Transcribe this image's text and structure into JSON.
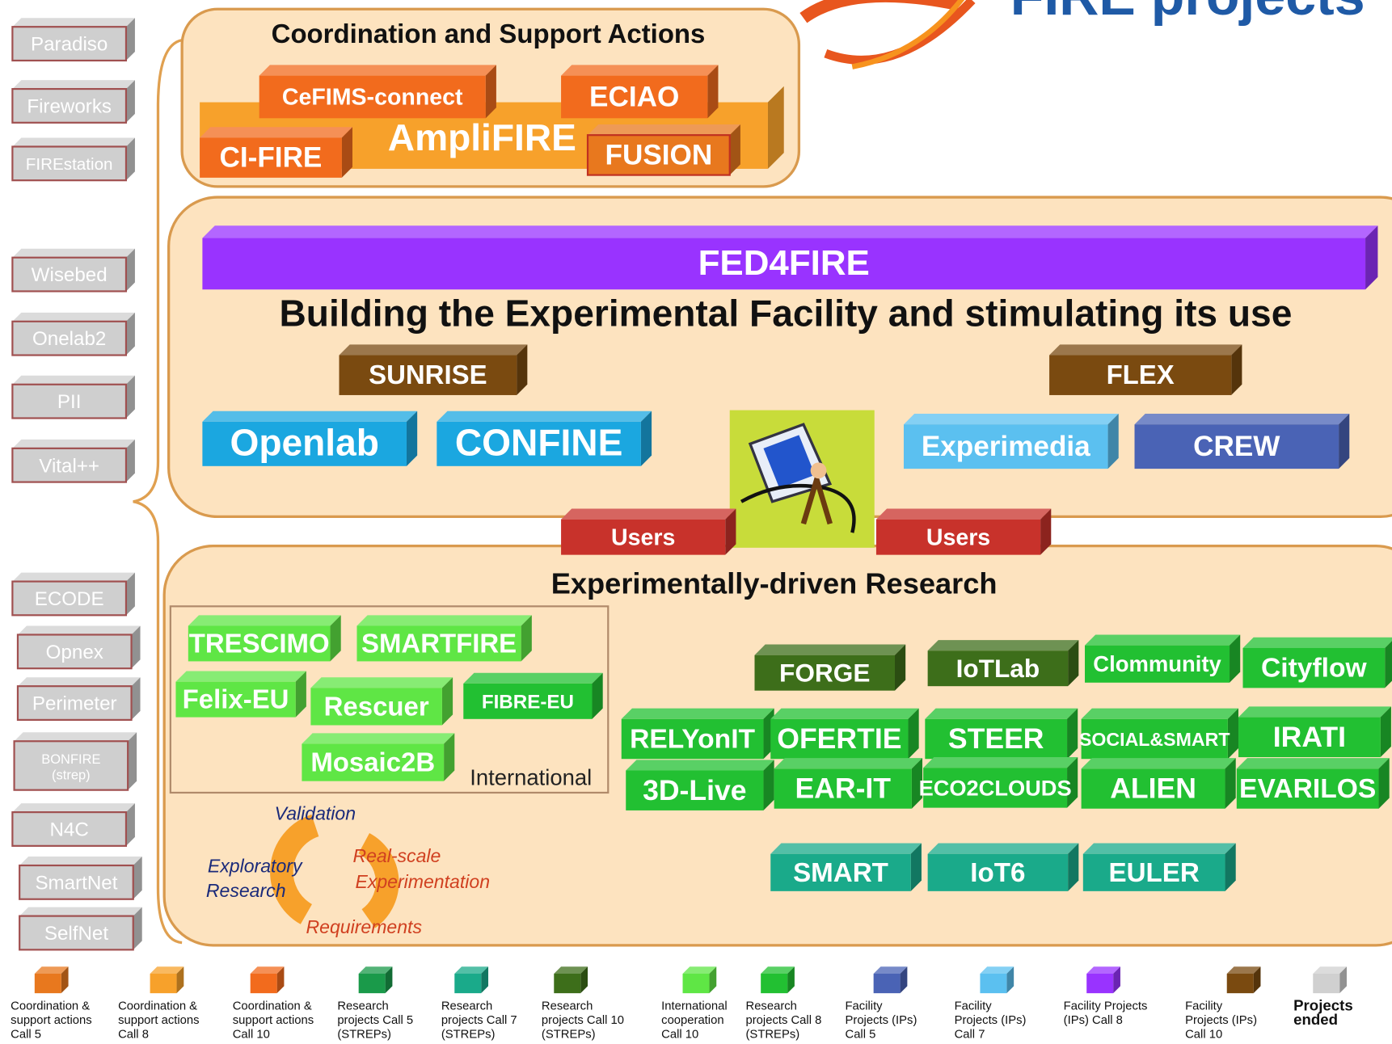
{
  "header": {
    "title": "FIRE projects"
  },
  "ended_projects": [
    "Paradiso",
    "Fireworks",
    "FIREstation",
    "Wisebed",
    "Onelab2",
    "PII",
    "Vital++",
    "ECODE",
    "Opnex",
    "Perimeter",
    "BONFIRE (strep)",
    "N4C",
    "SmartNet",
    "SelfNet"
  ],
  "csa": {
    "title": "Coordination and Support Actions",
    "projects": [
      "AmpliFIRE",
      "CeFIMS-connect",
      "ECIAO",
      "CI-FIRE",
      "FUSION"
    ]
  },
  "facility": {
    "banner": "FED4FIRE",
    "subtitle": "Building the Experimental Facility and stimulating its use",
    "projects": [
      "SUNRISE",
      "FLEX",
      "Openlab",
      "CONFINE",
      "Experimedia",
      "CREW"
    ]
  },
  "users": [
    "Users",
    "Users"
  ],
  "research": {
    "title": "Experimentally-driven  Research",
    "international_label": "International",
    "international": [
      "TRESCIMO",
      "SMARTFIRE",
      "Felix-EU",
      "Rescuer",
      "FIBRE-EU",
      "Mosaic2B"
    ],
    "projects": [
      "FORGE",
      "IoTLab",
      "Clommunity",
      "Cityflow",
      "RELYonIT",
      "OFERTIE",
      "STEER",
      "SOCIAL&SMART",
      "IRATI",
      "3D-Live",
      "EAR-IT",
      "ECO2CLOUDS",
      "ALIEN",
      "EVARILOS",
      "SMART",
      "IoT6",
      "EULER"
    ],
    "cycle": [
      "Validation",
      "Exploratory",
      "Research",
      "Real-scale",
      "Experimentation",
      "Requirements"
    ]
  },
  "legend": [
    {
      "color": "#e8781e",
      "lines": [
        "Coordination &",
        "support actions",
        "Call 5"
      ]
    },
    {
      "color": "#f7a12b",
      "lines": [
        "Coordination &",
        "support actions",
        "Call 8"
      ]
    },
    {
      "color": "#f26b1d",
      "lines": [
        "Coordination &",
        "support actions",
        "Call 10"
      ]
    },
    {
      "color": "#1a9a4a",
      "lines": [
        "Research",
        "projects Call 5",
        "(STREPs)"
      ]
    },
    {
      "color": "#1aaa8a",
      "lines": [
        "Research",
        "projects Call 7",
        "(STREPs)"
      ]
    },
    {
      "color": "#3d6e1a",
      "lines": [
        "Research",
        "projects Call 10",
        "(STREPs)"
      ]
    },
    {
      "color": "#5fe645",
      "lines": [
        "International",
        "cooperation",
        "Call 10"
      ]
    },
    {
      "color": "#22c032",
      "lines": [
        "Research",
        "projects Call 8",
        "(STREPs)"
      ]
    },
    {
      "color": "#4a63b5",
      "lines": [
        "Facility",
        "Projects (IPs)",
        "Call 5"
      ]
    },
    {
      "color": "#5bc0f0",
      "lines": [
        "Facility",
        "Projects (IPs)",
        "Call 7"
      ]
    },
    {
      "color": "#9933ff",
      "lines": [
        "Facility Projects",
        "(IPs) Call 8"
      ]
    },
    {
      "color": "#7a4a10",
      "lines": [
        "Facility",
        "Projects (IPs)",
        "Call 10"
      ]
    },
    {
      "color": "#d0d0d0",
      "lines": [
        "Projects",
        "ended"
      ]
    }
  ]
}
